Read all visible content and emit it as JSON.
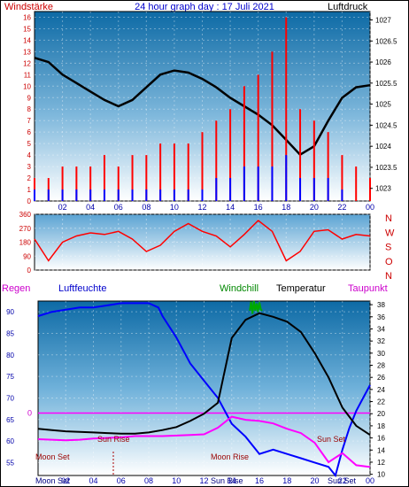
{
  "chart_data": [
    {
      "type": "line",
      "title": "24 hour graph day : 17 Juli 2021",
      "left_label": "Windstärke",
      "right_label": "Luftdruck",
      "x_ticks": [
        "02",
        "04",
        "06",
        "08",
        "10",
        "12",
        "14",
        "16",
        "18",
        "20",
        "22",
        "00"
      ],
      "left_ticks": [
        "0",
        "1",
        "2",
        "3",
        "4",
        "5",
        "6",
        "7",
        "8",
        "9",
        "10",
        "11",
        "12",
        "13",
        "14",
        "15",
        "16"
      ],
      "right_ticks": [
        "1023",
        "1023.5",
        "1024",
        "1024.5",
        "1025",
        "1025.5",
        "1026",
        "1026.5",
        "1027"
      ],
      "xlim": [
        0,
        24
      ],
      "ylim_left": [
        0,
        16.5
      ],
      "ylim_right": [
        1022.7,
        1027.2
      ],
      "series": [
        {
          "name": "Luftdruck",
          "color": "#000000",
          "axis": "right",
          "x": [
            0,
            1,
            2,
            3,
            4,
            5,
            6,
            7,
            8,
            9,
            10,
            11,
            12,
            13,
            14,
            15,
            16,
            17,
            18,
            19,
            20,
            21,
            22,
            23,
            24
          ],
          "y": [
            1026.1,
            1026.0,
            1025.7,
            1025.5,
            1025.3,
            1025.1,
            1024.95,
            1025.1,
            1025.4,
            1025.7,
            1025.8,
            1025.75,
            1025.6,
            1025.4,
            1025.15,
            1024.95,
            1024.75,
            1024.5,
            1024.15,
            1023.8,
            1024.0,
            1024.6,
            1025.15,
            1025.4,
            1025.45
          ]
        },
        {
          "name": "Böen",
          "color": "#ff0000",
          "axis": "left",
          "x": [
            0,
            1,
            2,
            3,
            4,
            5,
            6,
            7,
            8,
            9,
            10,
            11,
            12,
            13,
            14,
            15,
            16,
            17,
            18,
            19,
            20,
            21,
            22,
            23,
            24
          ],
          "y": [
            2,
            2,
            3,
            3,
            3,
            4,
            3,
            4,
            4,
            5,
            5,
            5,
            6,
            7,
            8,
            10,
            11,
            13,
            16,
            8,
            7,
            6,
            4,
            3,
            2
          ]
        },
        {
          "name": "Windstärke",
          "color": "#0000ff",
          "axis": "left",
          "x": [
            0,
            1,
            2,
            3,
            4,
            5,
            6,
            7,
            8,
            9,
            10,
            11,
            12,
            13,
            14,
            15,
            16,
            17,
            18,
            19,
            20,
            21,
            22,
            23,
            24
          ],
          "y": [
            1,
            1,
            1,
            1,
            1,
            1,
            1,
            1,
            1,
            1,
            1,
            1,
            1,
            2,
            2,
            3,
            3,
            3,
            4,
            2,
            2,
            2,
            1,
            0,
            0
          ]
        }
      ]
    },
    {
      "type": "line",
      "left_ticks": [
        "0",
        "90",
        "180",
        "270",
        "360"
      ],
      "right_labels": [
        "N",
        "W",
        "S",
        "O",
        "N"
      ],
      "ylim": [
        0,
        360
      ],
      "series": [
        {
          "name": "Windrichtung",
          "color": "#ff0000",
          "x": [
            0,
            1,
            2,
            3,
            4,
            5,
            6,
            7,
            8,
            9,
            10,
            11,
            12,
            13,
            14,
            15,
            16,
            17,
            18,
            19,
            20,
            21,
            22,
            23,
            24
          ],
          "y": [
            200,
            60,
            180,
            220,
            240,
            230,
            250,
            200,
            120,
            160,
            250,
            300,
            250,
            220,
            150,
            230,
            320,
            250,
            60,
            120,
            250,
            260,
            200,
            230,
            220
          ]
        }
      ]
    },
    {
      "type": "line",
      "legend": {
        "regen": "Regen",
        "luftfeuchte": "Luftfeuchte",
        "windchill": "Windchill",
        "temperatur": "Temperatur",
        "taupunkt": "Taupunkt"
      },
      "left_ticks": [
        "55",
        "60",
        "65",
        "70",
        "75",
        "80",
        "85",
        "90"
      ],
      "right_ticks": [
        "10",
        "12",
        "14",
        "16",
        "18",
        "20",
        "22",
        "24",
        "26",
        "28",
        "30",
        "32",
        "34",
        "36",
        "38"
      ],
      "regen_tick": "0",
      "x_ticks": [
        "02",
        "04",
        "06",
        "08",
        "10",
        "12",
        "14",
        "16",
        "18",
        "20",
        "22",
        "00"
      ],
      "ylim_left": [
        52,
        92.5
      ],
      "ylim_right": [
        9.8,
        38.6
      ],
      "annotations": {
        "moon_set_1": "Moon Set",
        "moon_set_2": "Moon Set",
        "sun_rise_1": "Sun Rise",
        "sun_rise_2": "Sun Rise",
        "moon_rise": "Moon Rise",
        "sun_set_1": "Sun Set",
        "sun_set_2": "Sun Set"
      },
      "series": [
        {
          "name": "Luftfeuchte",
          "color": "#0000ff",
          "axis": "left",
          "x": [
            0,
            1,
            2,
            3,
            4,
            5,
            6,
            7,
            8,
            8.7,
            9,
            10,
            11,
            12,
            13,
            14,
            15,
            16,
            17,
            18,
            19,
            20,
            21,
            21.5,
            22,
            22.5,
            23,
            23.5,
            24
          ],
          "y": [
            89,
            90,
            90.5,
            91,
            91,
            91.5,
            92,
            92,
            92,
            91,
            89,
            84,
            78,
            74,
            70,
            64,
            61,
            57,
            58,
            57,
            56,
            55,
            54,
            52,
            58,
            63,
            67,
            70,
            73
          ]
        },
        {
          "name": "Temperatur",
          "color": "#000000",
          "axis": "right",
          "x": [
            0,
            1,
            2,
            3,
            4,
            5,
            6,
            7,
            8,
            9,
            10,
            11,
            12,
            13,
            14,
            15,
            16,
            17,
            18,
            19,
            20,
            21,
            22,
            23,
            24
          ],
          "y": [
            17.5,
            17.3,
            17.1,
            17.0,
            16.9,
            16.8,
            16.7,
            16.7,
            16.9,
            17.3,
            17.8,
            18.8,
            20.0,
            21.8,
            32.5,
            35.5,
            36.6,
            36.0,
            35.2,
            33.5,
            30.0,
            26.0,
            21.0,
            18.0,
            16.5
          ]
        },
        {
          "name": "Taupunkt",
          "color": "#ff00ff",
          "axis": "right",
          "x": [
            0,
            1,
            2,
            3,
            4,
            5,
            6,
            7,
            8,
            9,
            10,
            11,
            12,
            13,
            14,
            15,
            16,
            17,
            18,
            19,
            20,
            21,
            22,
            23,
            24
          ],
          "y": [
            15.8,
            15.7,
            15.6,
            15.7,
            15.9,
            16.0,
            16.1,
            16.3,
            16.3,
            16.3,
            16.4,
            16.5,
            16.6,
            17.7,
            19.5,
            19.0,
            18.8,
            18.4,
            17.5,
            16.8,
            15.2,
            12.0,
            13.5,
            11.5,
            11.2
          ]
        },
        {
          "name": "Windchill",
          "color": "#00aa00",
          "axis": "right",
          "x": [
            15.3,
            15.4,
            15.5,
            15.6,
            15.7,
            15.8,
            15.9,
            16.0,
            16.1,
            16.2
          ],
          "y": [
            37,
            38.5,
            36.5,
            38.6,
            37,
            38.2,
            36.8,
            38.4,
            37.2,
            37.0
          ]
        }
      ]
    }
  ]
}
